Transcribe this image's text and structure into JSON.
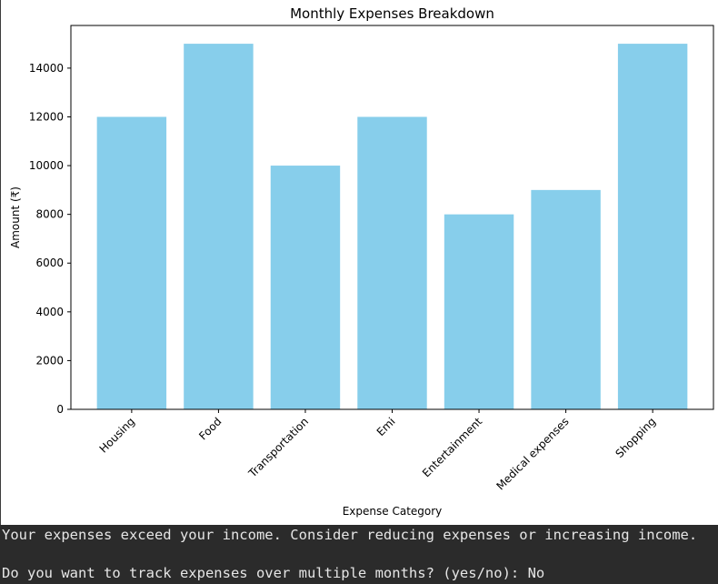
{
  "chart_data": {
    "type": "bar",
    "title": "Monthly Expenses Breakdown",
    "xlabel": "Expense Category",
    "ylabel": "Amount (₹)",
    "categories": [
      "Housing",
      "Food",
      "Transportation",
      "Emi",
      "Entertainment",
      "Medical expenses",
      "Shopping"
    ],
    "values": [
      12000,
      15000,
      10000,
      12000,
      8000,
      9000,
      15000
    ],
    "yticks": [
      0,
      2000,
      4000,
      6000,
      8000,
      10000,
      12000,
      14000
    ],
    "ylim": [
      0,
      15750
    ],
    "bar_color": "#87ceeb",
    "grid": false,
    "xtick_rotation_deg": 45
  },
  "console": {
    "line1": "Your expenses exceed your income. Consider reducing expenses or increasing income.",
    "prompt": "Do you want to track expenses over multiple months? (yes/no): ",
    "input_value": "No"
  }
}
